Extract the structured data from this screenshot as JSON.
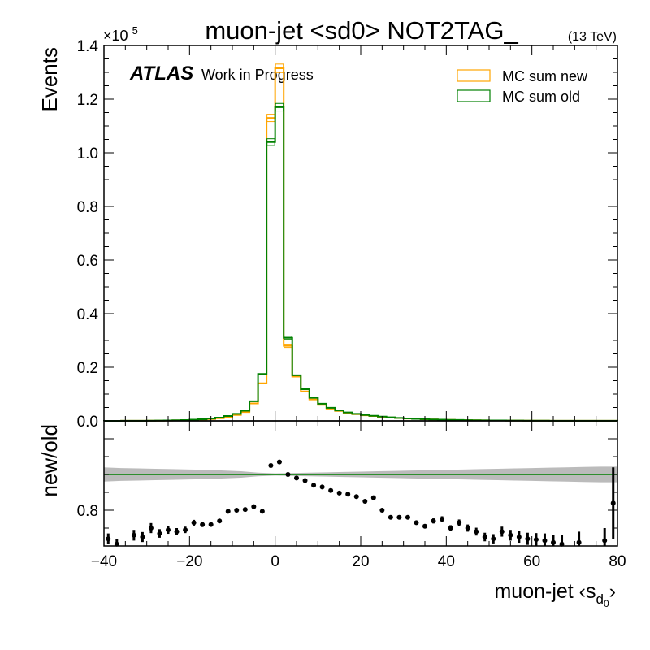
{
  "chart_data": [
    {
      "type": "line",
      "panel": "main",
      "title": "muon-jet <sd0> NOT2TAG_",
      "energy_label": "(13 TeV)",
      "ylabel": "Events",
      "y_multiplier_label": "×10",
      "y_multiplier_exp": "5",
      "atlas_label": "ATLAS",
      "atlas_sublabel": "Work in Progress",
      "xlim": [
        -40,
        80
      ],
      "ylim": [
        0,
        140000
      ],
      "yticks": [
        0,
        20000,
        40000,
        60000,
        80000,
        100000,
        120000,
        140000
      ],
      "ytick_labels": [
        "0.0",
        "0.2",
        "0.4",
        "0.6",
        "0.8",
        "1.0",
        "1.2",
        "1.4"
      ],
      "legend_position": "top-right",
      "bin_width": 2,
      "bin_edges": [
        -40,
        -38,
        -36,
        -34,
        -32,
        -30,
        -28,
        -26,
        -24,
        -22,
        -20,
        -18,
        -16,
        -14,
        -12,
        -10,
        -8,
        -6,
        -4,
        -2,
        0,
        2,
        4,
        6,
        8,
        10,
        12,
        14,
        16,
        18,
        20,
        22,
        24,
        26,
        28,
        30,
        32,
        34,
        36,
        38,
        40,
        42,
        44,
        46,
        48,
        50,
        52,
        54,
        56,
        58,
        60,
        62,
        64,
        66,
        68,
        70,
        72,
        74,
        76,
        78,
        80
      ],
      "series": [
        {
          "name": "MC sum new",
          "color": "#ffa500",
          "values": [
            10,
            15,
            20,
            30,
            40,
            60,
            90,
            130,
            180,
            250,
            350,
            500,
            700,
            1000,
            1500,
            2200,
            3300,
            6500,
            14000,
            113000,
            131500,
            28000,
            16500,
            11000,
            8000,
            6000,
            4600,
            3700,
            3000,
            2500,
            2100,
            1800,
            1500,
            1250,
            1050,
            880,
            740,
            620,
            520,
            440,
            370,
            310,
            260,
            220,
            190,
            160,
            135,
            115,
            100,
            85,
            72,
            62,
            54,
            46,
            40,
            35,
            30,
            26,
            22,
            19
          ]
        },
        {
          "name": "MC sum old",
          "color": "#008000",
          "values": [
            12,
            18,
            25,
            38,
            52,
            75,
            115,
            160,
            225,
            310,
            440,
            620,
            860,
            1220,
            1800,
            2600,
            3800,
            7300,
            17500,
            104000,
            117000,
            31000,
            17000,
            11800,
            8600,
            6400,
            4900,
            3900,
            3150,
            2600,
            2200,
            1900,
            1580,
            1310,
            1100,
            920,
            770,
            650,
            545,
            460,
            385,
            325,
            272,
            230,
            198,
            166,
            140,
            120,
            104,
            88,
            75,
            64,
            56,
            48,
            42,
            36,
            31,
            27,
            23,
            20
          ]
        }
      ]
    },
    {
      "type": "scatter",
      "panel": "ratio",
      "ylabel": "new/old",
      "xlabel_main": "muon-jet ‹s",
      "xlabel_sub": "d",
      "xlabel_subsub": "0",
      "xlabel_close": "›",
      "xlim": [
        -40,
        80
      ],
      "ylim": [
        0.7,
        1.05
      ],
      "yticks": [
        0.8
      ],
      "ytick_labels": [
        "0.8"
      ],
      "xticks": [
        -40,
        -20,
        0,
        20,
        40,
        60,
        80
      ],
      "xtick_labels": [
        "−40",
        "−20",
        "0",
        "20",
        "40",
        "60",
        "80"
      ],
      "reference_line": {
        "y": 0.9,
        "color": "#008000"
      },
      "uncertainty_band": {
        "color": "#bbbbbb",
        "x": [
          -40,
          -36,
          -32,
          -28,
          -24,
          -20,
          -16,
          -12,
          -8,
          -4,
          0,
          4,
          8,
          12,
          16,
          20,
          24,
          28,
          32,
          36,
          40,
          44,
          48,
          52,
          56,
          60,
          64,
          68,
          72,
          76,
          80
        ],
        "half_width": [
          0.02,
          0.018,
          0.017,
          0.016,
          0.015,
          0.014,
          0.013,
          0.011,
          0.009,
          0.005,
          0.003,
          0.004,
          0.005,
          0.006,
          0.007,
          0.008,
          0.009,
          0.01,
          0.011,
          0.012,
          0.013,
          0.014,
          0.015,
          0.016,
          0.017,
          0.018,
          0.019,
          0.02,
          0.021,
          0.022,
          0.022
        ]
      },
      "points": [
        {
          "x": -39,
          "y": 0.72,
          "err": 0.015
        },
        {
          "x": -37,
          "y": 0.705,
          "err": 0.015
        },
        {
          "x": -33,
          "y": 0.73,
          "err": 0.015
        },
        {
          "x": -31,
          "y": 0.725,
          "err": 0.014
        },
        {
          "x": -29,
          "y": 0.75,
          "err": 0.014
        },
        {
          "x": -27,
          "y": 0.735,
          "err": 0.012
        },
        {
          "x": -25,
          "y": 0.745,
          "err": 0.011
        },
        {
          "x": -23,
          "y": 0.74,
          "err": 0.01
        },
        {
          "x": -21,
          "y": 0.745,
          "err": 0.009
        },
        {
          "x": -19,
          "y": 0.765,
          "err": 0.008
        },
        {
          "x": -17,
          "y": 0.76,
          "err": 0.007
        },
        {
          "x": -15,
          "y": 0.76,
          "err": 0.006
        },
        {
          "x": -13,
          "y": 0.77,
          "err": 0.005
        },
        {
          "x": -11,
          "y": 0.797,
          "err": 0.004
        },
        {
          "x": -9,
          "y": 0.8,
          "err": 0.004
        },
        {
          "x": -7,
          "y": 0.802,
          "err": 0.003
        },
        {
          "x": -5,
          "y": 0.81,
          "err": 0.003
        },
        {
          "x": -3,
          "y": 0.797,
          "err": 0.002
        },
        {
          "x": -1,
          "y": 0.925,
          "err": 0.002
        },
        {
          "x": 1,
          "y": 0.935,
          "err": 0.002
        },
        {
          "x": 3,
          "y": 0.9,
          "err": 0.002
        },
        {
          "x": 5,
          "y": 0.89,
          "err": 0.002
        },
        {
          "x": 7,
          "y": 0.883,
          "err": 0.002
        },
        {
          "x": 9,
          "y": 0.87,
          "err": 0.002
        },
        {
          "x": 11,
          "y": 0.865,
          "err": 0.002
        },
        {
          "x": 13,
          "y": 0.855,
          "err": 0.002
        },
        {
          "x": 15,
          "y": 0.848,
          "err": 0.002
        },
        {
          "x": 17,
          "y": 0.845,
          "err": 0.002
        },
        {
          "x": 19,
          "y": 0.838,
          "err": 0.003
        },
        {
          "x": 21,
          "y": 0.825,
          "err": 0.003
        },
        {
          "x": 23,
          "y": 0.835,
          "err": 0.003
        },
        {
          "x": 25,
          "y": 0.8,
          "err": 0.003
        },
        {
          "x": 27,
          "y": 0.78,
          "err": 0.004
        },
        {
          "x": 29,
          "y": 0.78,
          "err": 0.004
        },
        {
          "x": 31,
          "y": 0.78,
          "err": 0.005
        },
        {
          "x": 33,
          "y": 0.765,
          "err": 0.005
        },
        {
          "x": 35,
          "y": 0.755,
          "err": 0.006
        },
        {
          "x": 37,
          "y": 0.77,
          "err": 0.007
        },
        {
          "x": 39,
          "y": 0.775,
          "err": 0.008
        },
        {
          "x": 41,
          "y": 0.75,
          "err": 0.008
        },
        {
          "x": 43,
          "y": 0.765,
          "err": 0.009
        },
        {
          "x": 45,
          "y": 0.75,
          "err": 0.01
        },
        {
          "x": 47,
          "y": 0.74,
          "err": 0.011
        },
        {
          "x": 49,
          "y": 0.725,
          "err": 0.012
        },
        {
          "x": 51,
          "y": 0.72,
          "err": 0.013
        },
        {
          "x": 53,
          "y": 0.74,
          "err": 0.014
        },
        {
          "x": 55,
          "y": 0.73,
          "err": 0.015
        },
        {
          "x": 57,
          "y": 0.725,
          "err": 0.016
        },
        {
          "x": 59,
          "y": 0.72,
          "err": 0.017
        },
        {
          "x": 61,
          "y": 0.718,
          "err": 0.018
        },
        {
          "x": 63,
          "y": 0.715,
          "err": 0.02
        },
        {
          "x": 65,
          "y": 0.71,
          "err": 0.02
        },
        {
          "x": 67,
          "y": 0.705,
          "err": 0.025
        },
        {
          "x": 71,
          "y": 0.71,
          "err": 0.03
        },
        {
          "x": 77,
          "y": 0.715,
          "err": 0.035
        },
        {
          "x": 79,
          "y": 0.82,
          "err": 0.1
        }
      ]
    }
  ]
}
